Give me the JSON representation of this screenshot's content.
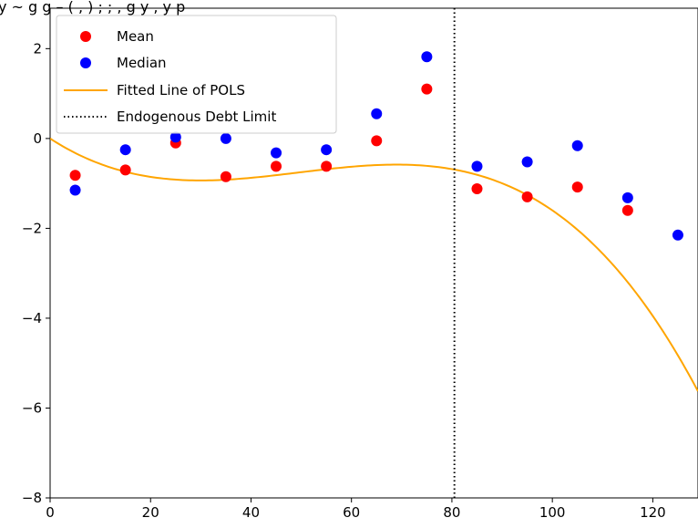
{
  "chart_data": {
    "type": "scatter",
    "title": "y ~ g g – ( , ) ; ; ,   g y , y p",
    "xlabel": "",
    "ylabel": "",
    "xlim": [
      0,
      129
    ],
    "ylim": [
      -8,
      2.9
    ],
    "x_ticks": [
      0,
      20,
      40,
      60,
      80,
      100,
      120
    ],
    "y_ticks": [
      2,
      0,
      -2,
      -4,
      -6,
      -8
    ],
    "grid": false,
    "legend_position": "top-left",
    "series": [
      {
        "name": "Mean",
        "kind": "scatter",
        "color": "#ff0000",
        "x": [
          5,
          15,
          25,
          35,
          45,
          55,
          65,
          75,
          85,
          95,
          105,
          115
        ],
        "y": [
          -0.82,
          -0.7,
          -0.1,
          -0.85,
          -0.62,
          -0.62,
          -0.05,
          1.1,
          -1.12,
          -1.3,
          -1.08,
          -1.6
        ]
      },
      {
        "name": "Median",
        "kind": "scatter",
        "color": "#0000ff",
        "x": [
          5,
          15,
          25,
          35,
          45,
          55,
          65,
          75,
          85,
          95,
          105,
          115,
          125
        ],
        "y": [
          -1.15,
          -0.25,
          0.03,
          0.0,
          -0.32,
          -0.25,
          0.55,
          1.82,
          -0.62,
          -0.52,
          -0.16,
          -1.32,
          -2.15
        ]
      },
      {
        "name": "Fitted Line of POLS",
        "kind": "line",
        "color": "#ffa500",
        "poly_coeffs": [
          0,
          -0.073,
          0.00175,
          -1.18e-05
        ],
        "x_range": [
          0,
          129
        ]
      },
      {
        "name": "Endogenous Debt Limit",
        "kind": "vline",
        "color": "#000000",
        "x": 80.5
      }
    ]
  }
}
